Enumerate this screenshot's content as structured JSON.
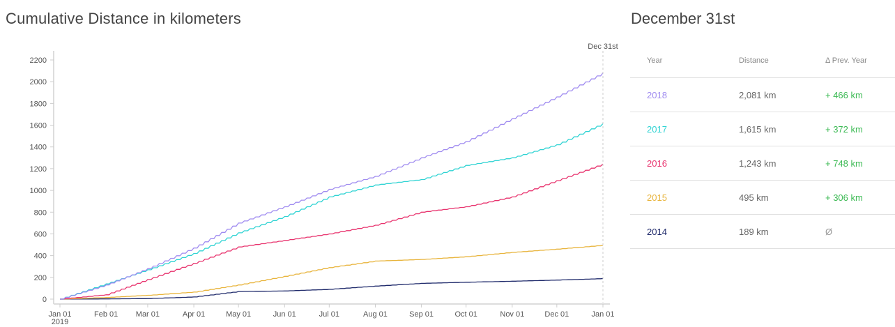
{
  "header": {
    "chart_title": "Cumulative Distance in kilometers",
    "side_title": "December 31st"
  },
  "table": {
    "headers": [
      "Year",
      "Distance",
      "Δ Prev. Year"
    ],
    "rows": [
      {
        "year": "2018",
        "distance": "2,081 km",
        "delta": "+ 466 km",
        "color": "#a08cf0"
      },
      {
        "year": "2017",
        "distance": "1,615 km",
        "delta": "+ 372 km",
        "color": "#2fd3d3"
      },
      {
        "year": "2016",
        "distance": "1,243 km",
        "delta": "+ 748 km",
        "color": "#e8336e"
      },
      {
        "year": "2015",
        "distance": "495 km",
        "delta": "+ 306 km",
        "color": "#e8b43c"
      },
      {
        "year": "2014",
        "distance": "189 km",
        "delta": "Ø",
        "color": "#1f2a6b"
      }
    ]
  },
  "chart_data": {
    "type": "line",
    "title": "Cumulative Distance in kilometers",
    "xlabel": "",
    "ylabel": "",
    "ylim": [
      0,
      2200
    ],
    "yticks": [
      0,
      200,
      400,
      600,
      800,
      1000,
      1200,
      1400,
      1600,
      1800,
      2000,
      2200
    ],
    "x_ticks": [
      "Jan 01",
      "Feb 01",
      "Mar 01",
      "Apr 01",
      "May 01",
      "Jun 01",
      "Jul 01",
      "Aug 01",
      "Sep 01",
      "Oct 01",
      "Nov 01",
      "Dec 01",
      "Jan 01"
    ],
    "x_sublabel": "2019",
    "annotation": "Dec 31st",
    "grid": false,
    "legend": "table at right",
    "categories": [
      "Jan 01",
      "Feb 01",
      "Mar 01",
      "Apr 01",
      "May 01",
      "Jun 01",
      "Jul 01",
      "Aug 01",
      "Sep 01",
      "Oct 01",
      "Nov 01",
      "Dec 01",
      "Dec 31"
    ],
    "series": [
      {
        "name": "2018",
        "color": "#a08cf0",
        "values": [
          0,
          130,
          280,
          470,
          700,
          850,
          1010,
          1130,
          1300,
          1450,
          1660,
          1860,
          2081
        ]
      },
      {
        "name": "2017",
        "color": "#2fd3d3",
        "values": [
          0,
          140,
          270,
          420,
          610,
          760,
          940,
          1050,
          1100,
          1230,
          1300,
          1420,
          1615
        ]
      },
      {
        "name": "2016",
        "color": "#e8336e",
        "values": [
          0,
          40,
          180,
          330,
          480,
          540,
          600,
          680,
          800,
          850,
          940,
          1090,
          1243
        ]
      },
      {
        "name": "2015",
        "color": "#e8b43c",
        "values": [
          0,
          15,
          35,
          65,
          130,
          210,
          290,
          350,
          365,
          390,
          430,
          460,
          495
        ]
      },
      {
        "name": "2014",
        "color": "#1f2a6b",
        "values": [
          0,
          2,
          5,
          20,
          70,
          75,
          90,
          120,
          145,
          155,
          165,
          175,
          189
        ]
      }
    ]
  }
}
